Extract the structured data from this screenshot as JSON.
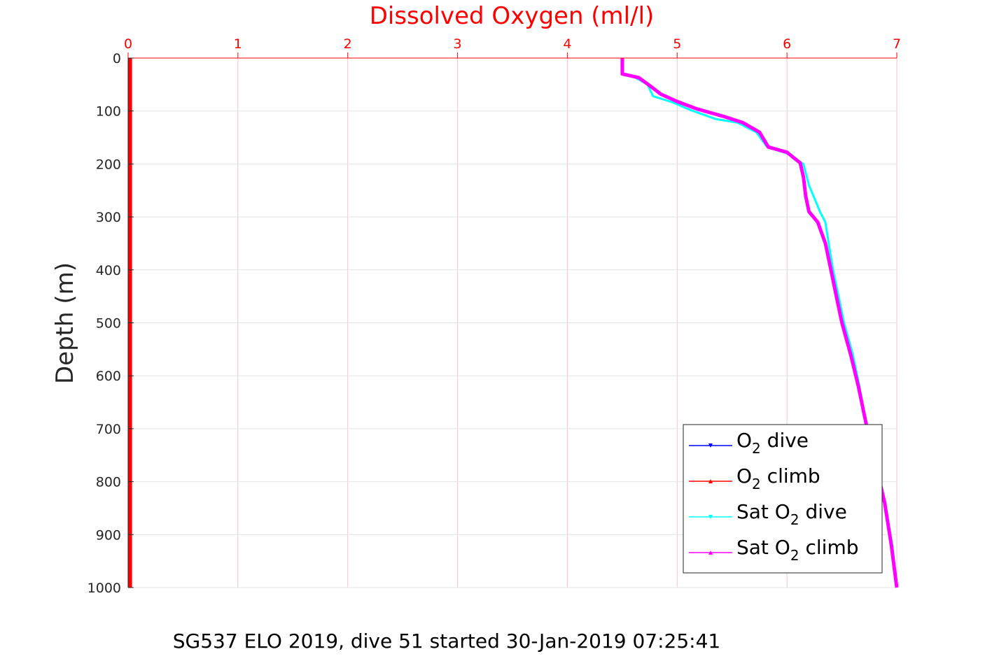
{
  "chart_data": {
    "type": "line",
    "title": "Dissolved Oxygen (ml/l)",
    "ylabel": "Depth (m)",
    "caption": "SG537 ELO 2019, dive 51 started 30-Jan-2019 07:25:41",
    "xlim": [
      0,
      7
    ],
    "ylim": [
      0,
      1000
    ],
    "y_reversed": true,
    "x_axis_position": "top",
    "grid": true,
    "legend_position": "bottom-right",
    "x_ticks": [
      "0",
      "1",
      "2",
      "3",
      "4",
      "5",
      "6",
      "7"
    ],
    "y_ticks": [
      "0",
      "100",
      "200",
      "300",
      "400",
      "500",
      "600",
      "700",
      "800",
      "900",
      "1000"
    ],
    "colors": {
      "axis": "#ff0000",
      "grid": "#f5c2d0",
      "o2_dive": "#0000ff",
      "o2_climb": "#ff0000",
      "sat_dive": "#00ffff",
      "sat_climb": "#ff00ff"
    },
    "series": [
      {
        "legend": {
          "pre": "O",
          "sub": "2",
          "post": " dive"
        },
        "color": "#0000ff",
        "marker": "triangle-down",
        "points": [
          [
            0.01,
            0
          ],
          [
            0.01,
            1000
          ]
        ]
      },
      {
        "legend": {
          "pre": "O",
          "sub": "2",
          "post": " climb"
        },
        "color": "#ff0000",
        "marker": "triangle-up",
        "points": [
          [
            0.02,
            0
          ],
          [
            0.02,
            1000
          ]
        ]
      },
      {
        "legend": {
          "pre": "Sat O",
          "sub": "2",
          "post": " dive"
        },
        "color": "#00ffff",
        "marker": "triangle-down",
        "points": [
          [
            4.5,
            0
          ],
          [
            4.5,
            30
          ],
          [
            4.62,
            37
          ],
          [
            4.73,
            50
          ],
          [
            4.78,
            72
          ],
          [
            4.95,
            83
          ],
          [
            5.12,
            98
          ],
          [
            5.35,
            115
          ],
          [
            5.55,
            122
          ],
          [
            5.72,
            140
          ],
          [
            5.82,
            168
          ],
          [
            6.0,
            180
          ],
          [
            6.15,
            200
          ],
          [
            6.2,
            240
          ],
          [
            6.25,
            265
          ],
          [
            6.3,
            290
          ],
          [
            6.35,
            310
          ],
          [
            6.38,
            350
          ],
          [
            6.42,
            400
          ],
          [
            6.47,
            450
          ],
          [
            6.52,
            500
          ],
          [
            6.6,
            560
          ],
          [
            6.66,
            620
          ],
          [
            6.72,
            690
          ],
          [
            6.8,
            760
          ],
          [
            6.9,
            850
          ],
          [
            6.96,
            920
          ],
          [
            7.0,
            1000
          ]
        ]
      },
      {
        "legend": {
          "pre": "Sat O",
          "sub": "2",
          "post": " climb"
        },
        "color": "#ff00ff",
        "marker": "triangle-up",
        "points": [
          [
            4.5,
            0
          ],
          [
            4.5,
            30
          ],
          [
            4.65,
            37
          ],
          [
            4.75,
            52
          ],
          [
            4.85,
            68
          ],
          [
            5.0,
            82
          ],
          [
            5.18,
            96
          ],
          [
            5.42,
            110
          ],
          [
            5.6,
            122
          ],
          [
            5.75,
            140
          ],
          [
            5.83,
            168
          ],
          [
            6.0,
            178
          ],
          [
            6.12,
            198
          ],
          [
            6.15,
            225
          ],
          [
            6.17,
            260
          ],
          [
            6.2,
            290
          ],
          [
            6.28,
            310
          ],
          [
            6.35,
            350
          ],
          [
            6.4,
            400
          ],
          [
            6.45,
            450
          ],
          [
            6.5,
            500
          ],
          [
            6.58,
            560
          ],
          [
            6.65,
            620
          ],
          [
            6.72,
            690
          ],
          [
            6.8,
            760
          ],
          [
            6.89,
            840
          ],
          [
            6.95,
            920
          ],
          [
            7.0,
            1000
          ]
        ]
      }
    ]
  }
}
